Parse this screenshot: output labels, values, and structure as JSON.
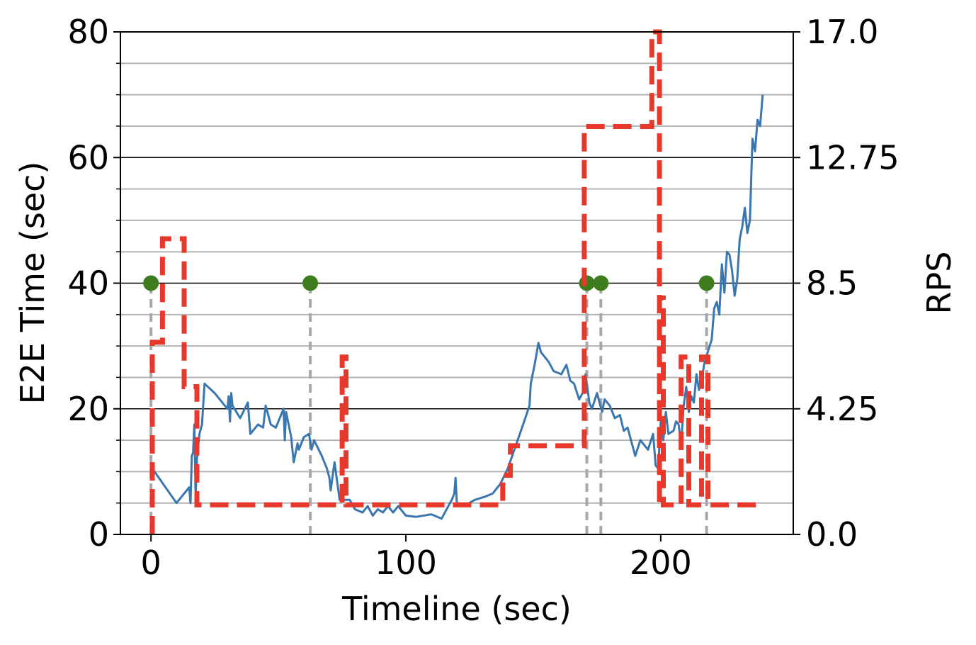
{
  "chart_data": {
    "type": "line",
    "xlabel": "Timeline (sec)",
    "ylabel": "E2E Time (sec)",
    "y2label": "RPS",
    "xlim": [
      -12,
      252
    ],
    "ylim": [
      0,
      80
    ],
    "y2lim": [
      0,
      17
    ],
    "x_ticks": [
      0,
      100,
      200
    ],
    "x_tick_labels": [
      "0",
      "100",
      "200"
    ],
    "y_ticks": [
      0,
      20,
      40,
      60,
      80
    ],
    "y_tick_labels": [
      "0",
      "20",
      "40",
      "60",
      "80"
    ],
    "y2_ticks": [
      0,
      4.25,
      8.5,
      12.75,
      17
    ],
    "y2_tick_labels": [
      "0.0",
      "4.25",
      "8.5",
      "12.75",
      "17.0"
    ],
    "y_minor_ticks": [
      5,
      10,
      15,
      25,
      30,
      35,
      45,
      50,
      55,
      65,
      70,
      75
    ],
    "grid": true,
    "colors": {
      "e2e": "#3a76b0",
      "rps": "#e8382c",
      "event_marker": "#3e7d1e",
      "event_line": "#a8a8a8",
      "grid_major": "#000000",
      "grid_minor": "#b3b3b3"
    },
    "series": [
      {
        "axis": "left",
        "style": "solid",
        "values": [
          [
            0.5,
            10.5
          ],
          [
            10,
            5
          ],
          [
            15,
            7.5
          ],
          [
            15.5,
            5
          ],
          [
            16,
            12.5
          ],
          [
            16.5,
            13
          ],
          [
            17,
            17.5
          ],
          [
            17.5,
            6
          ],
          [
            18,
            12
          ],
          [
            19,
            16
          ],
          [
            20,
            17.5
          ],
          [
            21,
            24
          ],
          [
            25,
            22.5
          ],
          [
            30,
            20
          ],
          [
            30.5,
            22
          ],
          [
            31,
            18
          ],
          [
            31.5,
            22.5
          ],
          [
            32,
            20.5
          ],
          [
            35,
            18.5
          ],
          [
            38,
            21
          ],
          [
            39,
            16
          ],
          [
            42,
            17.5
          ],
          [
            44,
            17
          ],
          [
            45,
            20.5
          ],
          [
            47,
            17.5
          ],
          [
            49,
            17
          ],
          [
            52,
            20
          ],
          [
            52.5,
            15
          ],
          [
            53,
            19.5
          ],
          [
            55,
            15.5
          ],
          [
            56,
            11.5
          ],
          [
            57.5,
            14.5
          ],
          [
            58,
            13.5
          ],
          [
            60,
            15.5
          ],
          [
            62,
            16
          ],
          [
            63,
            13.5
          ],
          [
            64,
            15
          ],
          [
            67,
            12.5
          ],
          [
            69,
            10.5
          ],
          [
            70,
            9
          ],
          [
            70.5,
            7
          ],
          [
            72,
            11.5
          ],
          [
            74,
            5.5
          ],
          [
            78,
            5.5
          ],
          [
            80,
            4
          ],
          [
            83,
            3.5
          ],
          [
            85,
            4.5
          ],
          [
            87,
            3
          ],
          [
            89,
            4
          ],
          [
            91,
            3.5
          ],
          [
            93,
            4.5
          ],
          [
            95,
            3.5
          ],
          [
            97,
            4.5
          ],
          [
            98,
            4
          ],
          [
            100,
            3
          ],
          [
            104,
            2.8
          ],
          [
            110,
            3.2
          ],
          [
            114,
            2.5
          ],
          [
            118,
            5.5
          ],
          [
            119,
            6.5
          ],
          [
            119.5,
            9
          ],
          [
            120,
            5
          ],
          [
            124,
            4.8
          ],
          [
            127,
            5.5
          ],
          [
            131,
            6
          ],
          [
            134,
            6.5
          ],
          [
            135,
            7
          ],
          [
            137,
            8
          ],
          [
            140,
            10.5
          ],
          [
            143,
            14
          ],
          [
            146,
            17.5
          ],
          [
            148.5,
            20.5
          ],
          [
            149,
            24
          ],
          [
            150.5,
            27
          ],
          [
            152,
            30.5
          ],
          [
            153,
            29
          ],
          [
            156,
            27.5
          ],
          [
            158,
            26
          ],
          [
            161,
            25.5
          ],
          [
            163,
            27
          ],
          [
            164.5,
            24.5
          ],
          [
            166,
            24
          ],
          [
            168,
            21.5
          ],
          [
            170,
            23
          ],
          [
            170.5,
            25.5
          ],
          [
            171,
            24
          ],
          [
            172,
            21
          ],
          [
            173,
            20
          ],
          [
            175,
            22.5
          ],
          [
            177,
            19.5
          ],
          [
            178,
            21.5
          ],
          [
            180,
            20.5
          ],
          [
            182,
            18.5
          ],
          [
            184,
            19
          ],
          [
            185.5,
            16.5
          ],
          [
            187,
            17
          ],
          [
            189,
            14
          ],
          [
            190,
            12.5
          ],
          [
            192,
            15
          ],
          [
            193,
            14.5
          ],
          [
            195,
            13.5
          ],
          [
            197,
            16
          ],
          [
            198,
            11
          ],
          [
            199,
            10.5
          ],
          [
            200,
            18
          ],
          [
            201,
            15
          ],
          [
            202,
            19.5
          ],
          [
            203,
            16
          ],
          [
            205,
            16.5
          ],
          [
            206,
            18
          ],
          [
            207,
            17.5
          ],
          [
            208,
            14.5
          ],
          [
            209,
            20.5
          ],
          [
            210,
            23.5
          ],
          [
            211,
            19.5
          ],
          [
            212,
            22
          ],
          [
            213,
            21
          ],
          [
            214,
            25.5
          ],
          [
            215,
            23
          ],
          [
            216,
            24.5
          ],
          [
            217,
            27
          ],
          [
            218,
            28.5
          ],
          [
            220,
            31
          ],
          [
            221,
            36
          ],
          [
            222,
            37
          ],
          [
            223,
            35
          ],
          [
            224,
            43
          ],
          [
            225,
            38.5
          ],
          [
            226,
            45
          ],
          [
            227,
            44.5
          ],
          [
            228,
            42
          ],
          [
            229,
            38
          ],
          [
            230,
            40.5
          ],
          [
            231,
            47
          ],
          [
            232,
            49
          ],
          [
            233,
            52
          ],
          [
            234,
            48
          ],
          [
            235,
            50
          ],
          [
            236,
            63
          ],
          [
            237,
            61
          ],
          [
            238,
            66
          ],
          [
            239,
            65
          ],
          [
            240,
            70
          ]
        ]
      },
      {
        "axis": "right",
        "style": "dashed",
        "values": [
          [
            0.5,
            0
          ],
          [
            0.5,
            6.5
          ],
          [
            4.5,
            6.5
          ],
          [
            4.5,
            10
          ],
          [
            13,
            10
          ],
          [
            13,
            5
          ],
          [
            18,
            5
          ],
          [
            18,
            1
          ],
          [
            75,
            1
          ],
          [
            75,
            6
          ],
          [
            76.5,
            6
          ],
          [
            76.5,
            1
          ],
          [
            138,
            1
          ],
          [
            138,
            2
          ],
          [
            141,
            2
          ],
          [
            141,
            3
          ],
          [
            142.5,
            3
          ],
          [
            142.5,
            3
          ],
          [
            170,
            3
          ],
          [
            170,
            13.8
          ],
          [
            196.5,
            13.8
          ],
          [
            196.5,
            17
          ],
          [
            199.5,
            17
          ],
          [
            199.5,
            1
          ],
          [
            199.5,
            8
          ],
          [
            201,
            8
          ],
          [
            201,
            1
          ],
          [
            208,
            1
          ],
          [
            208,
            6
          ],
          [
            211,
            6
          ],
          [
            211,
            1
          ],
          [
            216,
            1
          ],
          [
            216,
            6
          ],
          [
            218.5,
            6
          ],
          [
            218.5,
            1
          ],
          [
            240,
            1
          ]
        ]
      }
    ],
    "events": [
      0,
      62.5,
      171,
      176.5,
      218
    ],
    "event_level": 40
  }
}
